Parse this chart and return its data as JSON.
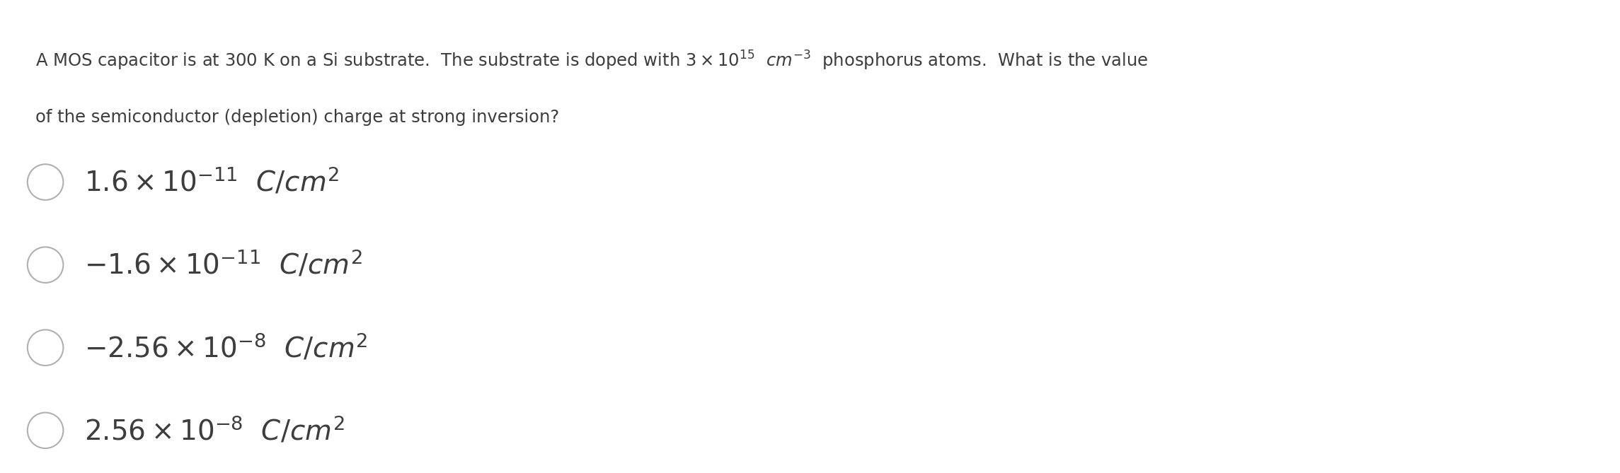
{
  "background_color": "#ffffff",
  "question_line1": "A MOS capacitor is at 300 K on a Si substrate.  The substrate is doped with $3 \\times 10^{15}$  $cm^{-3}$  phosphorus atoms.  What is the value",
  "question_line2": "of the semiconductor (depletion) charge at strong inversion?",
  "options": [
    "$1.6 \\times 10^{-11}$  $C/cm^2$",
    "$-1.6 \\times 10^{-11}$  $C/cm^2$",
    "$-2.56 \\times 10^{-8}$  $C/cm^2$",
    "$2.56 \\times 10^{-8}$  $C/cm^2$"
  ],
  "text_color": "#3d3d3d",
  "circle_color": "#b0b0b0",
  "question_fontsize": 17.5,
  "option_fontsize": 28,
  "figsize": [
    22.89,
    6.69
  ],
  "dpi": 100
}
